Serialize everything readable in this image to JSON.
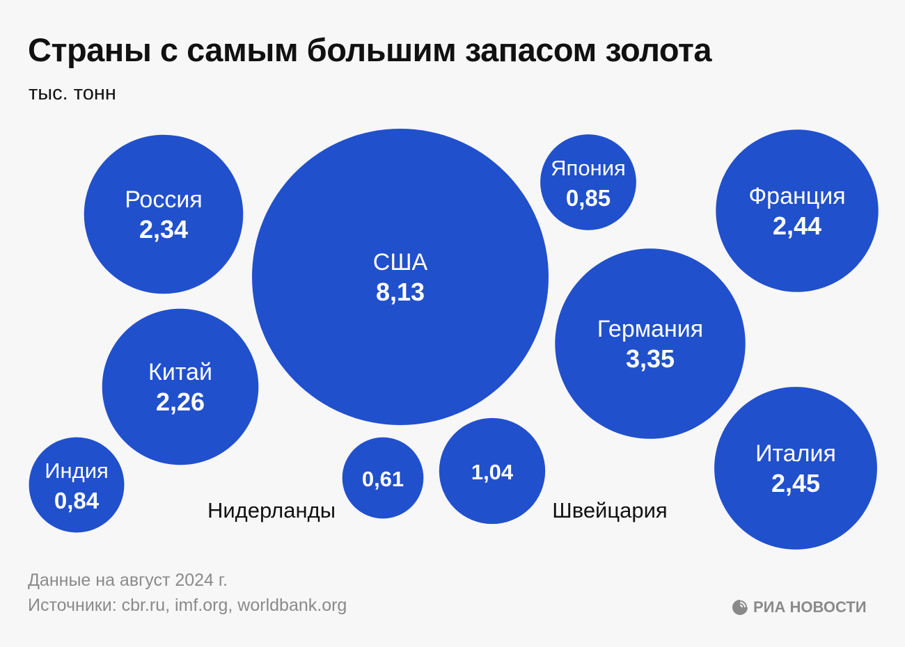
{
  "chart_data": {
    "type": "bubble",
    "title": "Страны с самым большим запасом золота",
    "subtitle": "тыс. тонн",
    "color": "#2150cc",
    "series": [
      {
        "name": "Россия",
        "value": 2.34,
        "label": "2,34"
      },
      {
        "name": "США",
        "value": 8.13,
        "label": "8,13"
      },
      {
        "name": "Япония",
        "value": 0.85,
        "label": "0,85"
      },
      {
        "name": "Франция",
        "value": 2.44,
        "label": "2,44"
      },
      {
        "name": "Германия",
        "value": 3.35,
        "label": "3,35"
      },
      {
        "name": "Китай",
        "value": 2.26,
        "label": "2,26"
      },
      {
        "name": "Индия",
        "value": 0.84,
        "label": "0,84"
      },
      {
        "name": "Нидерланды",
        "value": 0.61,
        "label": "0,61"
      },
      {
        "name": "Швейцария",
        "value": 1.04,
        "label": "1,04"
      },
      {
        "name": "Италия",
        "value": 2.45,
        "label": "2,45"
      }
    ]
  },
  "footer": {
    "note": "Данные на август 2024 г.",
    "sources": "Источники: cbr.ru, imf.org, worldbank.org",
    "logo": "РИА НОВОСТИ"
  }
}
